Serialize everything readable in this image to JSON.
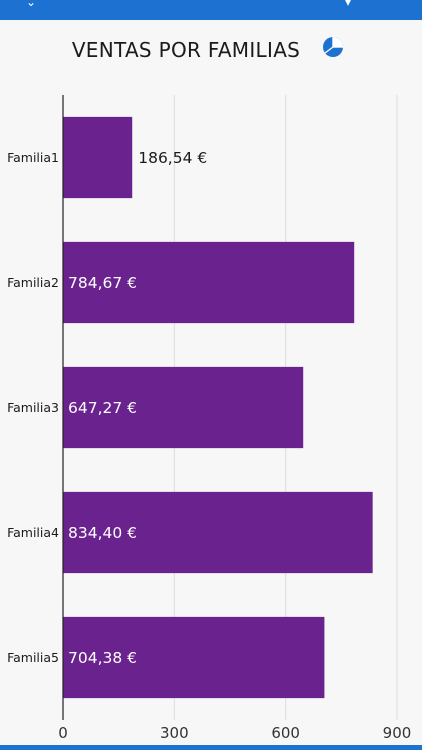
{
  "header": {
    "title": "VENTAS POR FAMILIAS",
    "chart_type_icon": "pie-chart-icon",
    "accent_color": "#1d72d1"
  },
  "colors": {
    "bar": "#6a228e",
    "label_on_bar": "#ffffff",
    "label_outside": "#1b1b1b"
  },
  "chart_data": {
    "type": "bar",
    "orientation": "horizontal",
    "categories": [
      "Familia1",
      "Familia2",
      "Familia3",
      "Familia4",
      "Familia5"
    ],
    "values": [
      186.54,
      784.67,
      647.27,
      834.4,
      704.38
    ],
    "value_labels": [
      "186,54 €",
      "784,67 €",
      "647,27 €",
      "834,40 €",
      "704,38 €"
    ],
    "xlim": [
      0,
      900
    ],
    "ticks": [
      0,
      300,
      600,
      900
    ],
    "tick_labels": [
      "0",
      "300",
      "600",
      "900"
    ],
    "grid": true,
    "legend": "none"
  }
}
